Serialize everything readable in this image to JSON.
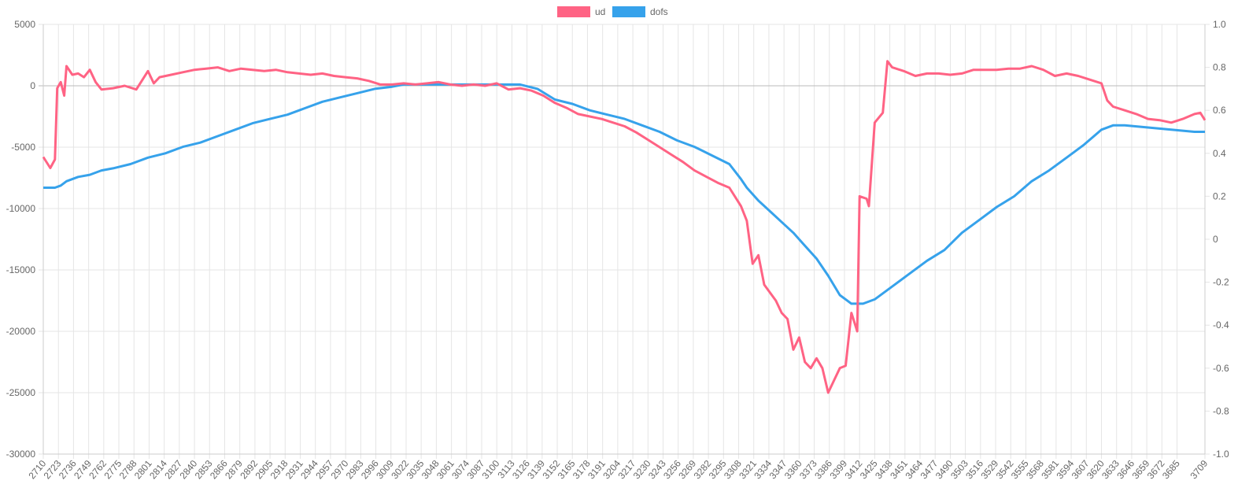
{
  "chart_data": {
    "type": "line",
    "title": "",
    "legend": {
      "position": "top-center",
      "entries": [
        "ud",
        "dofs"
      ]
    },
    "colors": {
      "ud": "#ff6384",
      "dofs": "#36a2eb"
    },
    "x_ticks": [
      2710,
      2723,
      2736,
      2749,
      2762,
      2775,
      2788,
      2801,
      2814,
      2827,
      2840,
      2853,
      2866,
      2879,
      2892,
      2905,
      2918,
      2931,
      2944,
      2957,
      2970,
      2983,
      2996,
      3009,
      3022,
      3035,
      3048,
      3061,
      3074,
      3087,
      3100,
      3113,
      3126,
      3139,
      3152,
      3165,
      3178,
      3191,
      3204,
      3217,
      3230,
      3243,
      3256,
      3269,
      3282,
      3295,
      3308,
      3321,
      3334,
      3347,
      3360,
      3373,
      3386,
      3399,
      3412,
      3425,
      3438,
      3451,
      3464,
      3477,
      3490,
      3503,
      3516,
      3529,
      3542,
      3555,
      3568,
      3581,
      3594,
      3607,
      3620,
      3633,
      3646,
      3659,
      3672,
      3685,
      3709
    ],
    "x_range": [
      2710,
      3709
    ],
    "y_left": {
      "range": [
        -30000,
        5000
      ],
      "ticks": [
        "5000",
        "0",
        "-5000",
        "-10000",
        "-15000",
        "-20000",
        "-25000",
        "-30000"
      ]
    },
    "y_right": {
      "range": [
        -1.0,
        1.0
      ],
      "ticks": [
        "1.0",
        "0.8",
        "0.6",
        "0.4",
        "0.2",
        "0",
        "-0.2",
        "-0.4",
        "-0.6",
        "-0.8",
        "-1.0"
      ]
    },
    "series": [
      {
        "name": "ud",
        "axis": "left",
        "x": [
          2710,
          2716,
          2720,
          2722,
          2725,
          2728,
          2730,
          2735,
          2740,
          2745,
          2750,
          2755,
          2760,
          2770,
          2780,
          2790,
          2800,
          2805,
          2810,
          2820,
          2830,
          2840,
          2850,
          2860,
          2870,
          2880,
          2890,
          2900,
          2910,
          2920,
          2930,
          2940,
          2950,
          2960,
          2970,
          2980,
          2990,
          3000,
          3010,
          3020,
          3030,
          3040,
          3050,
          3060,
          3070,
          3080,
          3090,
          3100,
          3110,
          3120,
          3130,
          3140,
          3150,
          3160,
          3170,
          3180,
          3190,
          3200,
          3210,
          3220,
          3230,
          3240,
          3250,
          3260,
          3270,
          3280,
          3290,
          3300,
          3310,
          3315,
          3320,
          3325,
          3330,
          3340,
          3345,
          3350,
          3355,
          3360,
          3365,
          3370,
          3375,
          3380,
          3385,
          3390,
          3395,
          3400,
          3405,
          3410,
          3412,
          3418,
          3420,
          3425,
          3432,
          3436,
          3440,
          3450,
          3460,
          3470,
          3480,
          3490,
          3500,
          3510,
          3520,
          3530,
          3540,
          3550,
          3560,
          3570,
          3580,
          3590,
          3600,
          3610,
          3620,
          3625,
          3630,
          3640,
          3650,
          3660,
          3670,
          3680,
          3690,
          3700,
          3705,
          3709
        ],
        "values": [
          -5800,
          -6700,
          -6000,
          -200,
          300,
          -800,
          1600,
          900,
          1000,
          700,
          1300,
          300,
          -300,
          -200,
          0,
          -300,
          1200,
          200,
          700,
          900,
          1100,
          1300,
          1400,
          1500,
          1200,
          1400,
          1300,
          1200,
          1300,
          1100,
          1000,
          900,
          1000,
          800,
          700,
          600,
          400,
          100,
          100,
          200,
          100,
          200,
          300,
          100,
          0,
          100,
          0,
          200,
          -300,
          -200,
          -400,
          -800,
          -1400,
          -1800,
          -2300,
          -2500,
          -2700,
          -3000,
          -3300,
          -3800,
          -4400,
          -5000,
          -5600,
          -6200,
          -6900,
          -7400,
          -7900,
          -8300,
          -9800,
          -11000,
          -14500,
          -13800,
          -16200,
          -17500,
          -18500,
          -19000,
          -21500,
          -20500,
          -22500,
          -23000,
          -22200,
          -23000,
          -25000,
          -24000,
          -23000,
          -22800,
          -18500,
          -20000,
          -9000,
          -9200,
          -9800,
          -3000,
          -2200,
          2000,
          1500,
          1200,
          800,
          1000,
          1000,
          900,
          1000,
          1300,
          1300,
          1300,
          1400,
          1400,
          1600,
          1300,
          800,
          1000,
          800,
          500,
          200,
          -1200,
          -1700,
          -2000,
          -2300,
          -2700,
          -2800,
          -3000,
          -2700,
          -2300,
          -2200,
          -2800
        ]
      },
      {
        "name": "dofs",
        "axis": "right",
        "x": [
          2710,
          2720,
          2725,
          2730,
          2740,
          2750,
          2760,
          2770,
          2785,
          2800,
          2815,
          2830,
          2845,
          2860,
          2875,
          2890,
          2905,
          2920,
          2935,
          2950,
          2965,
          2980,
          2995,
          3010,
          3020,
          3060,
          3100,
          3120,
          3135,
          3150,
          3165,
          3180,
          3195,
          3210,
          3225,
          3240,
          3255,
          3270,
          3285,
          3300,
          3310,
          3315,
          3325,
          3335,
          3345,
          3355,
          3365,
          3375,
          3385,
          3395,
          3405,
          3415,
          3425,
          3440,
          3455,
          3470,
          3485,
          3500,
          3515,
          3530,
          3545,
          3560,
          3575,
          3590,
          3605,
          3620,
          3630,
          3640,
          3660,
          3680,
          3700,
          3709
        ],
        "values": [
          0.24,
          0.24,
          0.25,
          0.27,
          0.29,
          0.3,
          0.32,
          0.33,
          0.35,
          0.38,
          0.4,
          0.43,
          0.45,
          0.48,
          0.51,
          0.54,
          0.56,
          0.58,
          0.61,
          0.64,
          0.66,
          0.68,
          0.7,
          0.71,
          0.72,
          0.72,
          0.72,
          0.72,
          0.7,
          0.65,
          0.63,
          0.6,
          0.58,
          0.56,
          0.53,
          0.5,
          0.46,
          0.43,
          0.39,
          0.35,
          0.28,
          0.24,
          0.18,
          0.13,
          0.08,
          0.03,
          -0.03,
          -0.09,
          -0.17,
          -0.26,
          -0.3,
          -0.3,
          -0.28,
          -0.22,
          -0.16,
          -0.1,
          -0.05,
          0.03,
          0.09,
          0.15,
          0.2,
          0.27,
          0.32,
          0.38,
          0.44,
          0.51,
          0.53,
          0.53,
          0.52,
          0.51,
          0.5,
          0.5
        ]
      }
    ]
  }
}
